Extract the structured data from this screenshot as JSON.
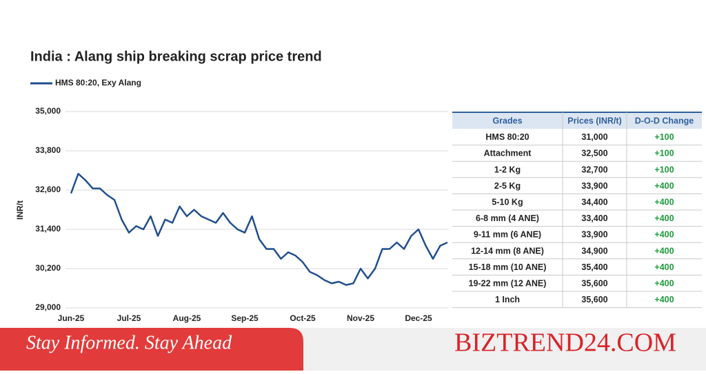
{
  "chart_data": {
    "type": "line",
    "title": "India : Alang ship breaking scrap price trend",
    "y_label": "INR/t",
    "categories": [
      "Jun-25",
      null,
      null,
      null,
      null,
      null,
      null,
      null,
      "Jul-25",
      null,
      null,
      null,
      null,
      null,
      null,
      null,
      "Aug-25",
      null,
      null,
      null,
      null,
      null,
      null,
      null,
      "Sep-25",
      null,
      null,
      null,
      null,
      null,
      null,
      null,
      "Oct-25",
      null,
      null,
      null,
      null,
      null,
      null,
      null,
      "Nov-25",
      null,
      null,
      null,
      null,
      null,
      null,
      null,
      "Dec-25",
      null,
      null,
      null,
      null
    ],
    "series": [
      {
        "name": "HMS 80:20, Exy Alang",
        "color": "#1f4e8c",
        "values": [
          32500,
          33100,
          32900,
          32650,
          32650,
          32450,
          32300,
          31700,
          31300,
          31500,
          31400,
          31800,
          31200,
          31700,
          31600,
          32100,
          31800,
          32000,
          31800,
          31700,
          31600,
          31900,
          31600,
          31400,
          31300,
          31800,
          31100,
          30800,
          30800,
          30500,
          30700,
          30600,
          30400,
          30100,
          30000,
          29850,
          29750,
          29800,
          29700,
          29750,
          30200,
          29900,
          30200,
          30800,
          30800,
          31000,
          30800,
          31200,
          31400,
          30900,
          30500,
          30900,
          31000
        ]
      }
    ],
    "ylim": [
      29000,
      35000
    ],
    "yticks": [
      {
        "value": 29000,
        "label": "29,000"
      },
      {
        "value": 30200,
        "label": "30,200"
      },
      {
        "value": 31400,
        "label": "31,400"
      },
      {
        "value": 32600,
        "label": "32,600"
      },
      {
        "value": 33800,
        "label": "33,800"
      },
      {
        "value": 35000,
        "label": "35,000"
      }
    ],
    "grid": true,
    "legend": "top-left"
  },
  "table": {
    "header": [
      "Grades",
      "Prices (INR/t)",
      "D-O-D Change"
    ],
    "rows": [
      [
        "HMS 80:20",
        "31,000",
        "+100"
      ],
      [
        "Attachment",
        "32,500",
        "+100"
      ],
      [
        "1-2 Kg",
        "32,700",
        "+100"
      ],
      [
        "2-5 Kg",
        "33,900",
        "+400"
      ],
      [
        "5-10 Kg",
        "34,400",
        "+400"
      ],
      [
        "6-8 mm (4 ANE)",
        "33,400",
        "+400"
      ],
      [
        "9-11 mm (6 ANE)",
        "33,900",
        "+400"
      ],
      [
        "12-14 mm (8 ANE)",
        "34,900",
        "+400"
      ],
      [
        "15-18 mm (10 ANE)",
        "35,400",
        "+400"
      ],
      [
        "19-22 mm (12 ANE)",
        "35,600",
        "+400"
      ],
      [
        "1 Inch",
        "35,600",
        "+400"
      ]
    ]
  },
  "banner": {
    "tagline": "Stay Informed. Stay Ahead",
    "brand": "BIZTREND24.COM"
  }
}
